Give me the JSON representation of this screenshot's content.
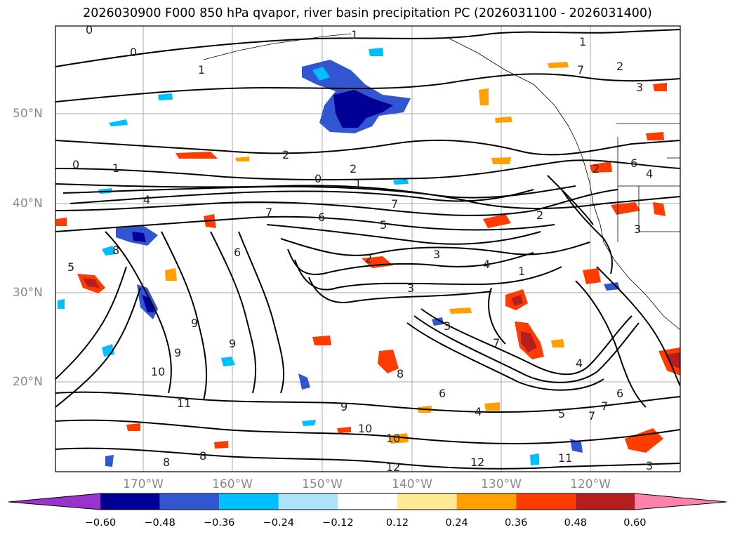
{
  "title": "2026030900 F000 850 hPa qvapor, river basin precipitation PC (2026031100 - 2026031400)",
  "lat_labels": [
    "50°N",
    "40°N",
    "30°N",
    "20°N"
  ],
  "lon_labels": [
    "170°W",
    "160°W",
    "150°W",
    "140°W",
    "130°W",
    "120°W"
  ],
  "colorbar": {
    "ticks": [
      "−0.60",
      "−0.48",
      "−0.36",
      "−0.24",
      "−0.12",
      "0.12",
      "0.24",
      "0.36",
      "0.48",
      "0.60"
    ],
    "colors": [
      "#9933cc",
      "#000096",
      "#3256d2",
      "#00bfff",
      "#aee3fb",
      "#ffffff",
      "#ffeb96",
      "#ffa000",
      "#ff3c00",
      "#b41e1e",
      "#ff82aa"
    ]
  },
  "contour_labels": [
    "0",
    "0",
    "1",
    "1",
    "1",
    "2",
    "2",
    "2",
    "2",
    "0",
    "1",
    "0",
    "1",
    "7",
    "7",
    "7",
    "6",
    "5",
    "2",
    "4",
    "8",
    "5",
    "6",
    "3",
    "3",
    "4",
    "3",
    "3",
    "1",
    "7",
    "9",
    "9",
    "10",
    "8",
    "9",
    "10",
    "11",
    "10",
    "12",
    "12",
    "11",
    "8",
    "6",
    "4",
    "4",
    "5",
    "6",
    "7",
    "6",
    "7",
    "3",
    "4",
    "2",
    "3",
    "9",
    "8"
  ]
}
